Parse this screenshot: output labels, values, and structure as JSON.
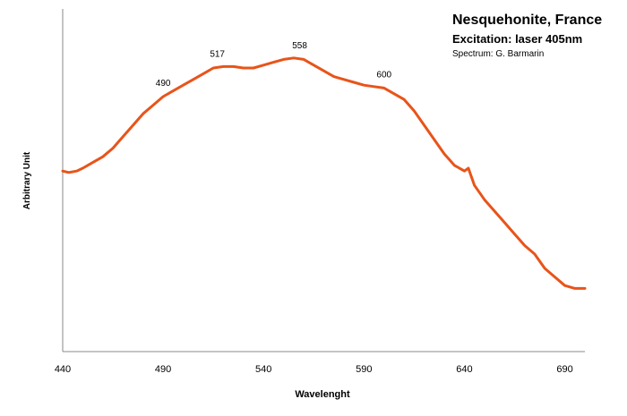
{
  "title": "Nesquehonite, France",
  "subtitle": "Excitation: laser 405nm",
  "credit": "Spectrum: G. Barmarin",
  "line_color": "#E8541A",
  "chart_data": {
    "type": "line",
    "xlabel": "Wavelenght",
    "ylabel": "Arbitrary Unit",
    "xlim": [
      440,
      700
    ],
    "ylim": [
      0,
      100
    ],
    "x_ticks": [
      440,
      490,
      540,
      590,
      640,
      690
    ],
    "y_ticks": [],
    "grid": false,
    "annotations": [
      {
        "x": 490,
        "label": "490"
      },
      {
        "x": 517,
        "label": "517"
      },
      {
        "x": 558,
        "label": "558"
      },
      {
        "x": 600,
        "label": "600"
      }
    ],
    "series": [
      {
        "x": [
          440,
          443,
          447,
          450,
          455,
          460,
          465,
          470,
          475,
          480,
          485,
          490,
          495,
          500,
          505,
          510,
          515,
          520,
          525,
          530,
          535,
          540,
          545,
          550,
          555,
          560,
          565,
          570,
          575,
          580,
          585,
          590,
          595,
          600,
          605,
          610,
          615,
          620,
          625,
          630,
          635,
          640,
          642,
          645,
          650,
          655,
          660,
          665,
          670,
          675,
          680,
          685,
          690,
          695,
          700
        ],
        "y": [
          59,
          58.5,
          59,
          60,
          62,
          64,
          67,
          71,
          75,
          79,
          82,
          85,
          87,
          89,
          91,
          93,
          95,
          95.5,
          95.5,
          95,
          95,
          96,
          97,
          98,
          98.5,
          98,
          96,
          94,
          92,
          91,
          90,
          89,
          88.5,
          88,
          86,
          84,
          80,
          75,
          70,
          65,
          61,
          59,
          60,
          54,
          49,
          45,
          41,
          37,
          33,
          30,
          25,
          22,
          19,
          18,
          18
        ]
      }
    ]
  }
}
